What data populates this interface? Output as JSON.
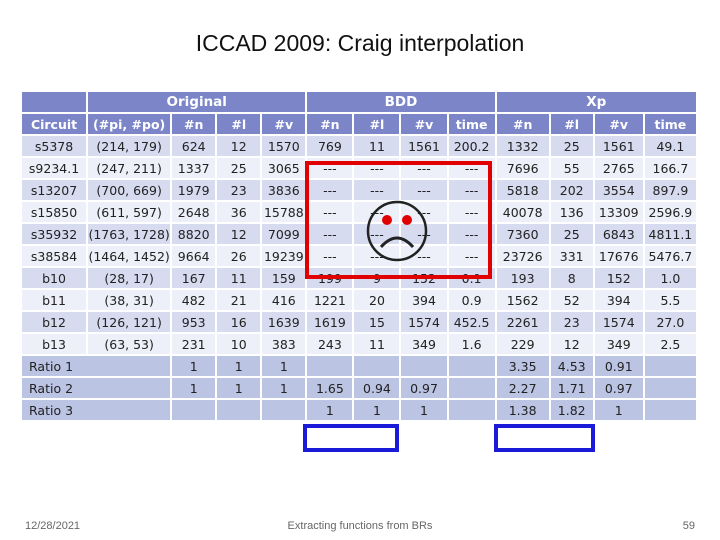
{
  "slide": {
    "title": "ICCAD 2009: Craig interpolation",
    "footer_date": "12/28/2021",
    "footer_center": "Extracting functions from BRs",
    "page_number": "59"
  },
  "table": {
    "group_headers": {
      "original": "Original",
      "bdd": "BDD",
      "xp": "Xp"
    },
    "columns": [
      "Circuit",
      "(#pi, #po)",
      "#n",
      "#l",
      "#v",
      "#n",
      "#l",
      "#v",
      "time",
      "#n",
      "#l",
      "#v",
      "time"
    ],
    "rows": [
      [
        "s5378",
        "(214, 179)",
        "624",
        "12",
        "1570",
        "769",
        "11",
        "1561",
        "200.2",
        "1332",
        "25",
        "1561",
        "49.1"
      ],
      [
        "s9234.1",
        "(247, 211)",
        "1337",
        "25",
        "3065",
        "---",
        "---",
        "---",
        "---",
        "7696",
        "55",
        "2765",
        "166.7"
      ],
      [
        "s13207",
        "(700, 669)",
        "1979",
        "23",
        "3836",
        "---",
        "---",
        "---",
        "---",
        "5818",
        "202",
        "3554",
        "897.9"
      ],
      [
        "s15850",
        "(611, 597)",
        "2648",
        "36",
        "15788",
        "---",
        "---",
        "---",
        "---",
        "40078",
        "136",
        "13309",
        "2596.9"
      ],
      [
        "s35932",
        "(1763, 1728)",
        "8820",
        "12",
        "7099",
        "---",
        "---",
        "---",
        "---",
        "7360",
        "25",
        "6843",
        "4811.1"
      ],
      [
        "s38584",
        "(1464, 1452)",
        "9664",
        "26",
        "19239",
        "---",
        "---",
        "---",
        "---",
        "23726",
        "331",
        "17676",
        "5476.7"
      ],
      [
        "b10",
        "(28, 17)",
        "167",
        "11",
        "159",
        "199",
        "9",
        "152",
        "0.1",
        "193",
        "8",
        "152",
        "1.0"
      ],
      [
        "b11",
        "(38, 31)",
        "482",
        "21",
        "416",
        "1221",
        "20",
        "394",
        "0.9",
        "1562",
        "52",
        "394",
        "5.5"
      ],
      [
        "b12",
        "(126, 121)",
        "953",
        "16",
        "1639",
        "1619",
        "15",
        "1574",
        "452.5",
        "2261",
        "23",
        "1574",
        "27.0"
      ],
      [
        "b13",
        "(63, 53)",
        "231",
        "10",
        "383",
        "243",
        "11",
        "349",
        "1.6",
        "229",
        "12",
        "349",
        "2.5"
      ]
    ],
    "ratios": [
      {
        "label": "Ratio 1",
        "values": [
          "1",
          "1",
          "1",
          "",
          "",
          "",
          "",
          "3.35",
          "4.53",
          "0.91",
          ""
        ]
      },
      {
        "label": "Ratio 2",
        "values": [
          "1",
          "1",
          "1",
          "1.65",
          "0.94",
          "0.97",
          "",
          "2.27",
          "1.71",
          "0.97",
          ""
        ]
      },
      {
        "label": "Ratio 3",
        "values": [
          "",
          "",
          "",
          "1",
          "1",
          "1",
          "",
          "1.38",
          "1.82",
          "1",
          ""
        ]
      }
    ]
  },
  "annotations": {
    "sad_face": "frown-face-icon",
    "highlight_red": "#e00000",
    "highlight_blue": "#1a1ad8"
  }
}
